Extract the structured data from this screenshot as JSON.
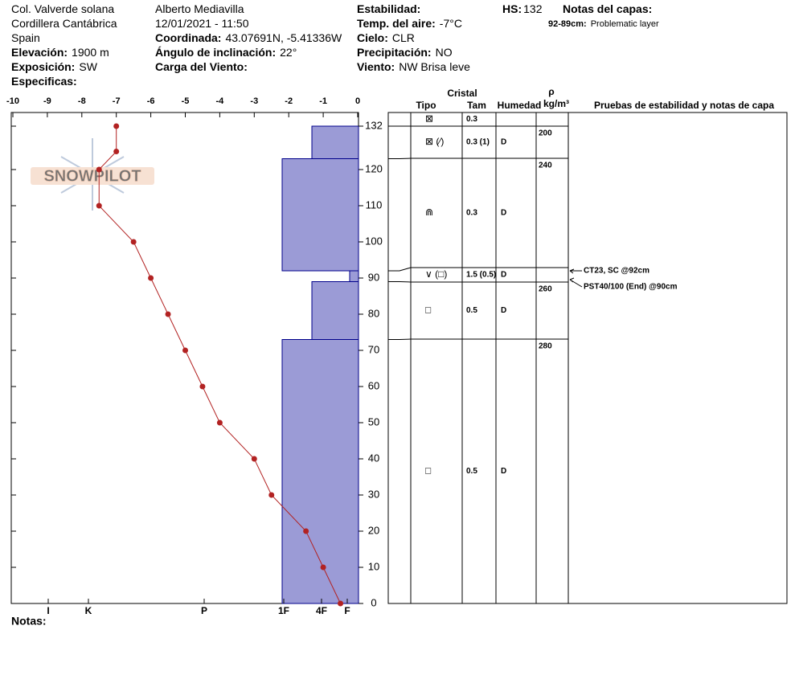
{
  "header": {
    "columns": [
      {
        "lines": [
          {
            "value": "Col. Valverde solana"
          },
          {
            "value": "Cordillera Cantábrica"
          },
          {
            "value": "Spain"
          },
          {
            "label": "Elevación:",
            "value": "1900 m"
          },
          {
            "label": "Exposición:",
            "value": "SW"
          },
          {
            "label": "Especificas:"
          }
        ]
      },
      {
        "lines": [
          {
            "value": "Alberto Mediavilla"
          },
          {
            "value": "12/01/2021 - 11:50"
          },
          {
            "label": "Coordinada:",
            "value": "43.07691N, -5.41336W"
          },
          {
            "label": "Ángulo de inclinación:",
            "value": "22°"
          },
          {
            "label": "Carga del Viento:"
          }
        ]
      },
      {
        "lines": [
          {
            "label": "Estabilidad:"
          },
          {
            "label": "Temp. del aire:",
            "value": "-7°C"
          },
          {
            "label": "Cielo:",
            "value": "CLR"
          },
          {
            "label": "Precipitación:",
            "value": "NO"
          },
          {
            "label": "Viento:",
            "value": "NW Brisa leve"
          }
        ]
      },
      {
        "lines": [
          {
            "label": "HS:",
            "value": "132"
          }
        ]
      },
      {
        "lines": [
          {
            "label": "Notas del capas:"
          },
          {
            "label": "92-89cm:",
            "value": "Problematic layer"
          }
        ]
      }
    ]
  },
  "logo": "SNOWPILOT",
  "chart_data": {
    "type": "line",
    "x": [
      -7,
      -7,
      -7.5,
      -7.5,
      -6.5,
      -6,
      -5.5,
      -5,
      -4.5,
      -4,
      -3,
      -2.5,
      -1.5,
      -1,
      -0.5
    ],
    "series": [
      {
        "color": "#b22222",
        "values": [
          132,
          125,
          120,
          110,
          100,
          90,
          80,
          70,
          60,
          50,
          40,
          30,
          20,
          10,
          0
        ]
      }
    ],
    "xlim": [
      -10,
      0
    ],
    "xticks": [
      -10,
      -9,
      -8,
      -7,
      -6,
      -5,
      -4,
      -3,
      -2,
      -1,
      0
    ],
    "ylim": [
      0,
      132
    ],
    "yticks": [
      0,
      10,
      20,
      30,
      40,
      50,
      60,
      70,
      80,
      90,
      100,
      110,
      120,
      132
    ],
    "hardness_ticks": [
      "I",
      "K",
      "P",
      "1F",
      "4F",
      "F"
    ]
  },
  "table": {
    "headers": {
      "crystal": "Cristal",
      "type": "Tipo",
      "size": "Tam",
      "moisture": "Humedad",
      "rho": "ρ",
      "density_unit": "kg/m³",
      "tests": "Pruebas de estabilidad y notas de capa"
    },
    "layers": [
      {
        "crystal": "⊠",
        "size": "0.3"
      },
      {
        "top": 132,
        "bottom": 123,
        "hardness": "4F",
        "crystal": "⊠ (⁄)",
        "size": "0.3 (1)",
        "moisture": "D",
        "density": 200
      },
      {
        "top": 123,
        "bottom": 92,
        "hardness": "1F",
        "crystal": "⋒",
        "size": "0.3",
        "moisture": "D",
        "density": 240
      },
      {
        "top": 92,
        "bottom": 89,
        "hardness": "F",
        "crystal": "∨ (□)",
        "size": "1.5 (0.5)",
        "moisture": "D"
      },
      {
        "top": 89,
        "bottom": 73,
        "hardness": "4F",
        "crystal": "□",
        "size": "0.5",
        "moisture": "D",
        "density": 260
      },
      {
        "top": 73,
        "bottom": 0,
        "hardness": "1F",
        "crystal": "□",
        "size": "0.5",
        "moisture": "D",
        "density": 280
      }
    ],
    "tests": [
      {
        "label": "CT23, SC @92cm",
        "depth": 92
      },
      {
        "label": "PST40/100 (End) @90cm",
        "depth": 90
      }
    ]
  },
  "footer": "Notas:"
}
